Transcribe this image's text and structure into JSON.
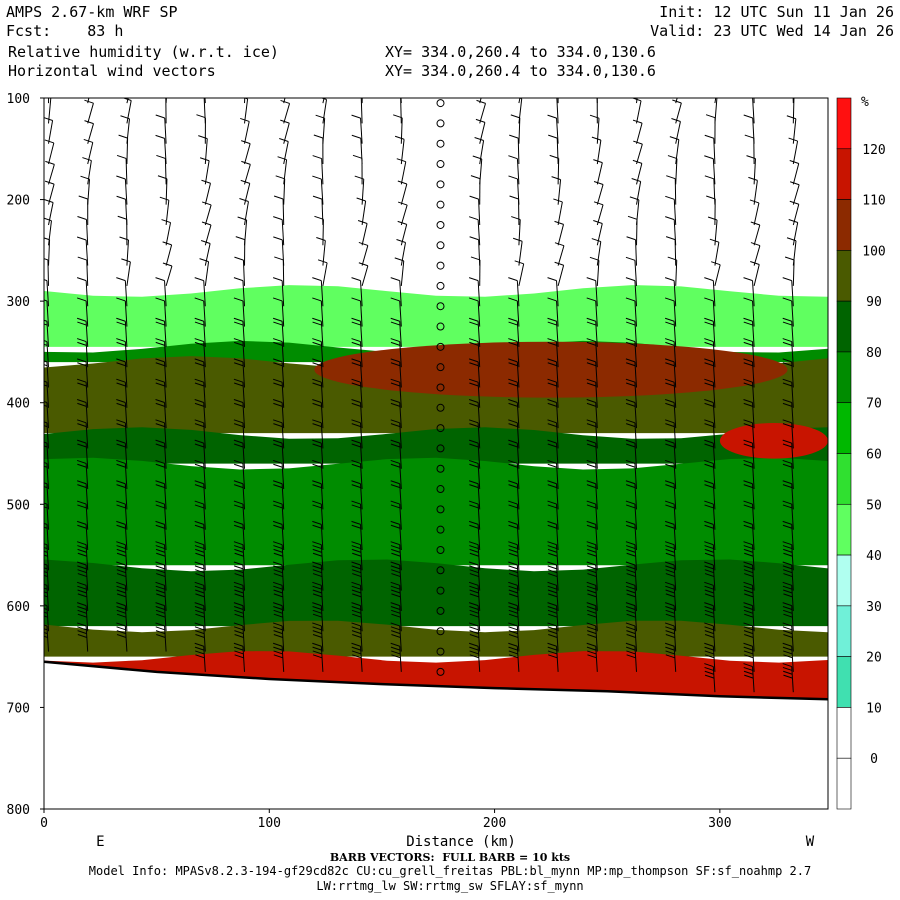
{
  "header": {
    "model": "AMPS 2.67-km WRF SP",
    "fcst": "Fcst:    83 h",
    "field1": "Relative humidity (w.r.t. ice)",
    "field2": "Horizontal wind vectors",
    "init": "Init: 12 UTC Sun 11 Jan 26",
    "valid": "Valid: 23 UTC Wed 14 Jan 26",
    "xy1": "XY= 334.0,260.4 to 334.0,130.6",
    "xy2": "XY= 334.0,260.4 to 334.0,130.6"
  },
  "footer": {
    "barb_note": "BARB VECTORS:  FULL BARB = 10 kts",
    "model_info": "Model Info: MPASv8.2.3-194-gf29cd82c CU:cu_grell_freitas PBL:bl_mynn MP:mp_thompson SF:sf_noahmp 2.7",
    "model_info2": "LW:rrtmg_lw SW:rrtmg_sw SFLAY:sf_mynn"
  },
  "colors": {
    "rh_levels": [
      "#ffffff",
      "#ffffff",
      "#ffffff",
      "#ffffff",
      "#e0fff0",
      "#b0fff0",
      "#70f0d8",
      "#40e0b0",
      "#60ff60",
      "#30e030",
      "#00b800",
      "#008c00",
      "#006400",
      "#4a5a00",
      "#8c2a00",
      "#c81400",
      "#ff1010"
    ],
    "terrain": "#ffffff"
  },
  "chart_data": {
    "type": "heatmap",
    "title": "Relative humidity (w.r.t. ice)",
    "xlabel": "Distance (km)",
    "ylabel": "",
    "x_ticks": [
      0,
      100,
      200,
      300
    ],
    "xlim": [
      0,
      348
    ],
    "y_ticks": [
      100,
      200,
      300,
      400,
      500,
      600,
      700,
      800
    ],
    "ylim": [
      100,
      800
    ],
    "y_reversed": true,
    "left_end_label": "E",
    "right_end_label": "W",
    "colorbar": {
      "unit": "%",
      "tick_labels": [
        "120",
        "110",
        "100",
        "90",
        "80",
        "70",
        "60",
        "50",
        "40",
        "30",
        "20",
        "10",
        "0"
      ],
      "bands": [
        "#ff1010",
        "#c81400",
        "#8c2a00",
        "#4a5a00",
        "#006400",
        "#008c00",
        "#00b800",
        "#30e030",
        "#60ff60",
        "#b0fff0",
        "#70f0d8",
        "#40e0b0",
        "#ffffff",
        "#ffffff"
      ]
    },
    "surface_pressure": [
      {
        "x": 0,
        "p": 655
      },
      {
        "x": 50,
        "p": 665
      },
      {
        "x": 100,
        "p": 672
      },
      {
        "x": 150,
        "p": 677
      },
      {
        "x": 200,
        "p": 681
      },
      {
        "x": 250,
        "p": 684
      },
      {
        "x": 300,
        "p": 689
      },
      {
        "x": 348,
        "p": 692
      }
    ],
    "rh_layers": [
      {
        "top": 290,
        "bottom": 345,
        "rh": 40
      },
      {
        "top": 345,
        "bottom": 360,
        "rh": 75
      },
      {
        "top": 360,
        "bottom": 430,
        "rh": 95
      },
      {
        "top": 430,
        "bottom": 460,
        "rh": 85
      },
      {
        "top": 460,
        "bottom": 560,
        "rh": 72
      },
      {
        "top": 560,
        "bottom": 620,
        "rh": 88
      },
      {
        "top": 620,
        "bottom": 650,
        "rh": 95
      },
      {
        "top": 650,
        "bottom": 700,
        "rh": 118
      }
    ],
    "rh_features": [
      {
        "x0": 120,
        "x1": 330,
        "p0": 340,
        "p1": 395,
        "rh": 105
      },
      {
        "x0": 300,
        "x1": 348,
        "p0": 420,
        "p1": 455,
        "rh": 118
      },
      {
        "x0": 240,
        "x1": 348,
        "p0": 655,
        "p1": 690,
        "rh": 112
      }
    ],
    "calm_column_x": 173
  }
}
